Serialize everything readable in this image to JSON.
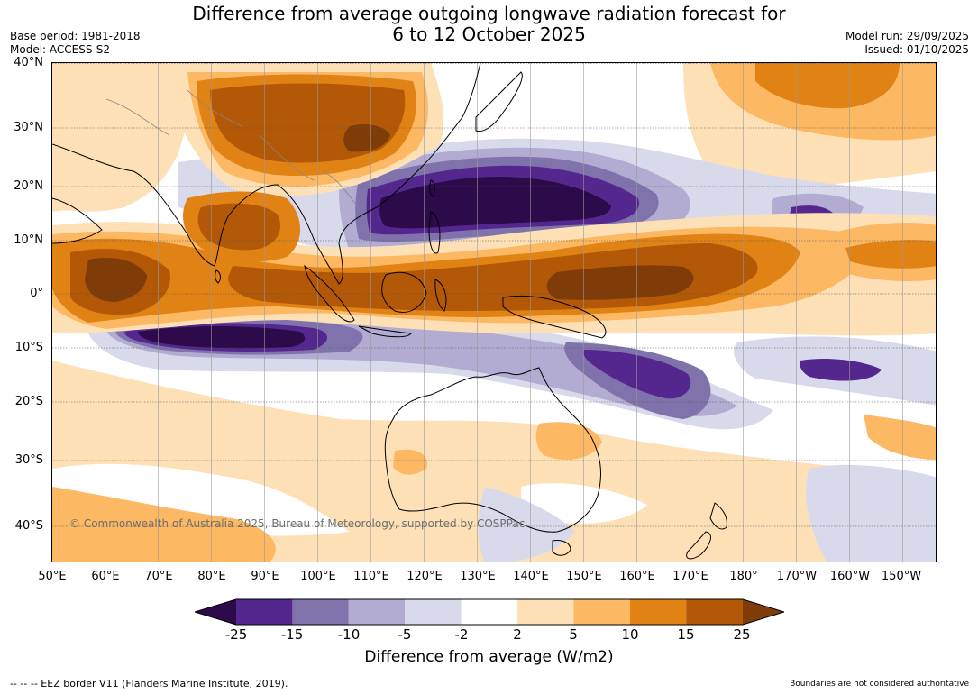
{
  "title_line1": "Difference from average outgoing longwave radiation forecast for",
  "title_line2": "6 to 12 October 2025",
  "base_period": "Base period: 1981-2018",
  "model": "Model: ACCESS-S2",
  "model_run": "Model run: 29/09/2025",
  "issued": "Issued: 01/10/2025",
  "copyright": "© Commonwealth of Australia 2025, Bureau of Meteorology, supported by COSPPac",
  "footer_left": "--  --  -- EEZ border V11 (Flanders Marine Institute, 2019).",
  "footer_right": "Boundaries are not considered authoritative",
  "lat_labels": [
    "40°N",
    "30°N",
    "20°N",
    "10°N",
    "0°",
    "10°S",
    "20°S",
    "30°S",
    "40°S"
  ],
  "lon_labels": [
    "50°E",
    "60°E",
    "70°E",
    "80°E",
    "90°E",
    "100°E",
    "110°E",
    "120°E",
    "130°E",
    "140°E",
    "150°E",
    "160°E",
    "170°E",
    "180°",
    "170°W",
    "160°W",
    "150°W"
  ],
  "colorbar": {
    "label": "Difference from average (W/m2)",
    "ticks": [
      "-25",
      "-15",
      "-10",
      "-5",
      "-2",
      "2",
      "5",
      "10",
      "15",
      "25"
    ],
    "colors": {
      "lt_-25": "#2d0a4a",
      "m25_m15": "#54278f",
      "m15_m10": "#8073ac",
      "m10_m5": "#b2abd2",
      "m5_m2": "#d8daeb",
      "m2_2": "#ffffff",
      "p2_p5": "#fee0b6",
      "p5_p10": "#fdb863",
      "p10_p15": "#e08214",
      "p15_p25": "#b35806",
      "gt_25": "#7f3b08"
    }
  }
}
